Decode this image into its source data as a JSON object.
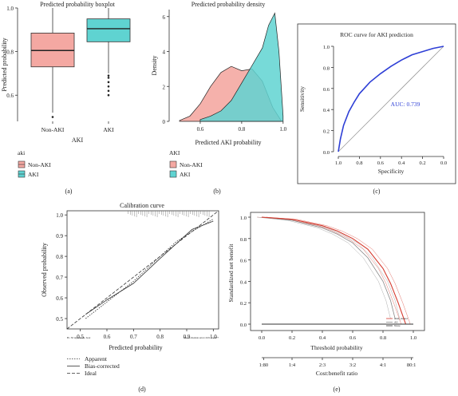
{
  "colors": {
    "nonaki": "#F4A8A2",
    "aki": "#5FD3D1",
    "roc": "#2E3FD6",
    "dca_red": "#D63A2E",
    "axis": "#333333"
  },
  "panel_labels": {
    "a": "(a)",
    "b": "(b)",
    "c": "(c)",
    "d": "(d)",
    "e": "(e)"
  },
  "chart_data": [
    {
      "id": "a",
      "type": "box",
      "title": "Predicted probability boxplot",
      "xlabel": "AKI",
      "ylabel": "Predicted probability",
      "categories": [
        "Non-AKI",
        "AKI"
      ],
      "boxes": [
        {
          "name": "Non-AKI",
          "q1": 0.73,
          "median": 0.805,
          "q3": 0.885,
          "whisker_low": 0.52,
          "whisker_high": 1.0,
          "outliers": [
            0.5
          ]
        },
        {
          "name": "AKI",
          "q1": 0.845,
          "median": 0.905,
          "q3": 0.95,
          "whisker_low": 0.7,
          "whisker_high": 1.0,
          "outliers": [
            0.6,
            0.62,
            0.64,
            0.66,
            0.68,
            0.69
          ]
        }
      ],
      "ylim": [
        0.48,
        1.0
      ],
      "yticks": [
        "0.6",
        "0.8",
        "1.0"
      ],
      "legend": {
        "title": "aki",
        "items": [
          "Non-AKI",
          "AKI"
        ]
      }
    },
    {
      "id": "b",
      "type": "area",
      "title": "Predicted probability density",
      "xlabel": "Predicted AKI probability",
      "ylabel": "Density",
      "xlim": [
        0.45,
        1.02
      ],
      "ylim": [
        0,
        6.4
      ],
      "xticks": [
        "0.6",
        "0.8",
        "1.0"
      ],
      "yticks": [
        "0",
        "2",
        "4",
        "6"
      ],
      "series": [
        {
          "name": "Non-AKI",
          "x": [
            0.5,
            0.55,
            0.6,
            0.65,
            0.7,
            0.75,
            0.8,
            0.85,
            0.9,
            0.95,
            0.99
          ],
          "y": [
            0.05,
            0.3,
            1.0,
            2.0,
            2.8,
            3.15,
            2.9,
            3.0,
            2.3,
            0.8,
            0.05
          ]
        },
        {
          "name": "AKI",
          "x": [
            0.6,
            0.65,
            0.7,
            0.75,
            0.8,
            0.85,
            0.9,
            0.93,
            0.96,
            0.98,
            1.0
          ],
          "y": [
            0.1,
            0.3,
            0.6,
            1.2,
            2.2,
            3.2,
            4.2,
            5.5,
            6.2,
            4.0,
            0.3
          ]
        }
      ],
      "legend": {
        "title": "AKI",
        "items": [
          "Non-AKI",
          "AKI"
        ]
      }
    },
    {
      "id": "c",
      "type": "line",
      "title": "ROC curve for AKI prediction",
      "xlabel": "Specificity",
      "ylabel": "Sensitivity",
      "xlim": [
        1.0,
        0.0
      ],
      "ylim": [
        0.0,
        1.0
      ],
      "xticks": [
        "1.0",
        "0.8",
        "0.6",
        "0.4",
        "0.2",
        "0.0"
      ],
      "yticks": [
        "0.0",
        "0.2",
        "0.4",
        "0.6",
        "0.8",
        "1.0"
      ],
      "series": [
        {
          "specificity": [
            1.0,
            0.98,
            0.95,
            0.9,
            0.85,
            0.8,
            0.7,
            0.6,
            0.5,
            0.4,
            0.3,
            0.2,
            0.1,
            0.0
          ],
          "sensitivity": [
            0.0,
            0.12,
            0.25,
            0.38,
            0.47,
            0.55,
            0.66,
            0.74,
            0.81,
            0.87,
            0.92,
            0.95,
            0.98,
            1.0
          ]
        }
      ],
      "annotation": "AUC: 0.739"
    },
    {
      "id": "d",
      "type": "line",
      "title": "Calibration curve",
      "xlabel": "Predicted probability",
      "ylabel": "Observed probability",
      "xlim": [
        0.45,
        1.02
      ],
      "ylim": [
        0.45,
        1.02
      ],
      "xticks": [
        "0.5",
        "0.6",
        "0.7",
        "0.8",
        "0.9",
        "1.0"
      ],
      "yticks": [
        "0.5",
        "0.6",
        "0.7",
        "0.8",
        "0.9",
        "1.0"
      ],
      "series": [
        {
          "name": "Apparent",
          "x": [
            0.52,
            0.6,
            0.7,
            0.8,
            0.86,
            0.92,
            1.0
          ],
          "y": [
            0.5,
            0.58,
            0.68,
            0.8,
            0.87,
            0.92,
            0.98
          ]
        },
        {
          "name": "Bias-corrected",
          "x": [
            0.52,
            0.6,
            0.7,
            0.8,
            0.86,
            0.92,
            1.0
          ],
          "y": [
            0.52,
            0.59,
            0.67,
            0.79,
            0.86,
            0.93,
            0.97
          ]
        },
        {
          "name": "Ideal",
          "x": [
            0.45,
            1.02
          ],
          "y": [
            0.45,
            1.02
          ]
        }
      ],
      "footnote_left": "B= 50 repetitions, boot",
      "footnote_right": "Mean absolute error=0.01 n=4277",
      "legend_items": [
        "Apparent",
        "Bias-corrected",
        "Ideal"
      ]
    },
    {
      "id": "e",
      "type": "line",
      "title": "",
      "xlabel": "Threshold probability",
      "ylabel": "Standardized net benefit",
      "xlim": [
        0.0,
        1.0
      ],
      "ylim": [
        0.0,
        1.0
      ],
      "xticks": [
        "0.0",
        "0.2",
        "0.4",
        "0.6",
        "0.8",
        "1.0"
      ],
      "yticks": [
        "0.0",
        "0.2",
        "0.4",
        "0.6",
        "0.8",
        "1.0"
      ],
      "x2label": "Cost:benefit ratio",
      "x2ticks": [
        "1:80",
        "1:4",
        "2:3",
        "3:2",
        "4:1",
        "80:1"
      ],
      "series": [
        {
          "name": "AKI_model",
          "x": [
            0.0,
            0.2,
            0.4,
            0.5,
            0.6,
            0.7,
            0.8,
            0.85,
            0.9,
            0.95
          ],
          "y": [
            1.0,
            0.98,
            0.92,
            0.87,
            0.8,
            0.7,
            0.52,
            0.38,
            0.2,
            0.0
          ]
        },
        {
          "name": "All",
          "x": [
            0.0,
            0.2,
            0.4,
            0.5,
            0.6,
            0.7,
            0.8,
            0.85,
            0.88
          ],
          "y": [
            1.0,
            0.97,
            0.9,
            0.84,
            0.76,
            0.62,
            0.4,
            0.22,
            0.05
          ]
        },
        {
          "name": "None",
          "x": [
            0.0,
            1.0
          ],
          "y": [
            0.0,
            0.0
          ]
        }
      ],
      "legend_items": [
        "AKI_model",
        "All",
        "None"
      ]
    }
  ]
}
